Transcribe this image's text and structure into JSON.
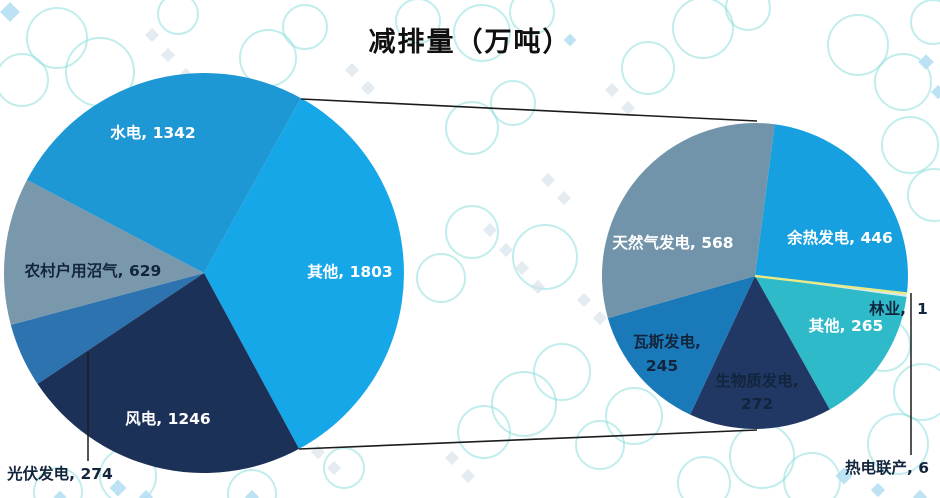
{
  "title": "减排量（万吨）",
  "colors": {
    "background": "#FFFFFF",
    "watermark_ring": "#8EDEDC",
    "watermark_diamond": "#D4DFE8",
    "watermark_diamond_blue": "#B2DDF2",
    "connector_line": "#1C1C1C",
    "leader_line": "#1C1C1C",
    "title_color": "#101010",
    "dark_label": "#13253D",
    "light_label": "#FFFFFF"
  },
  "chart_data": {
    "type": "pie",
    "subtype": "pie-of-pie",
    "title": "减排量（万吨）",
    "unit": "万吨",
    "label_format": "{label}, {value}",
    "legend": "none",
    "right_pie_is_breakdown_of": "其他",
    "pies": [
      {
        "name": "main-pie",
        "total": 5294,
        "slices": [
          {
            "label": "其他",
            "value": 1803,
            "color": "#16A7E9",
            "text_color": "#FFFFFF"
          },
          {
            "label": "风电",
            "value": 1246,
            "color": "#1C3158",
            "text_color": "#FFFFFF"
          },
          {
            "label": "光伏发电",
            "value": 274,
            "color": "#2D73AF",
            "text_color": "#13253D"
          },
          {
            "label": "农村户用沼气",
            "value": 629,
            "color": "#7A98AC",
            "text_color": "#13253D"
          },
          {
            "label": "水电",
            "value": 1342,
            "color": "#1E98D4",
            "text_color": "#FFFFFF"
          }
        ]
      },
      {
        "name": "breakdown-pie",
        "total": 1803,
        "slices": [
          {
            "label": "余热发电",
            "value": 446,
            "color": "#16A0E0",
            "text_color": "#FFFFFF"
          },
          {
            "label": "林业",
            "value": 1,
            "color": "#E9EA86",
            "text_color": "#13253D"
          },
          {
            "label": "热电联产",
            "value": 6,
            "color": "#D9E9F0",
            "text_color": "#13253D"
          },
          {
            "label": "其他",
            "value": 265,
            "color": "#2FBACA",
            "text_color": "#FFFFFF"
          },
          {
            "label": "生物质发电",
            "value": 272,
            "color": "#203863",
            "text_color": "#13253D"
          },
          {
            "label": "瓦斯发电",
            "value": 245,
            "color": "#1A79B8",
            "text_color": "#13253D"
          },
          {
            "label": "天然气发电",
            "value": 568,
            "color": "#7194AA",
            "text_color": "#FFFFFF"
          }
        ]
      }
    ]
  }
}
